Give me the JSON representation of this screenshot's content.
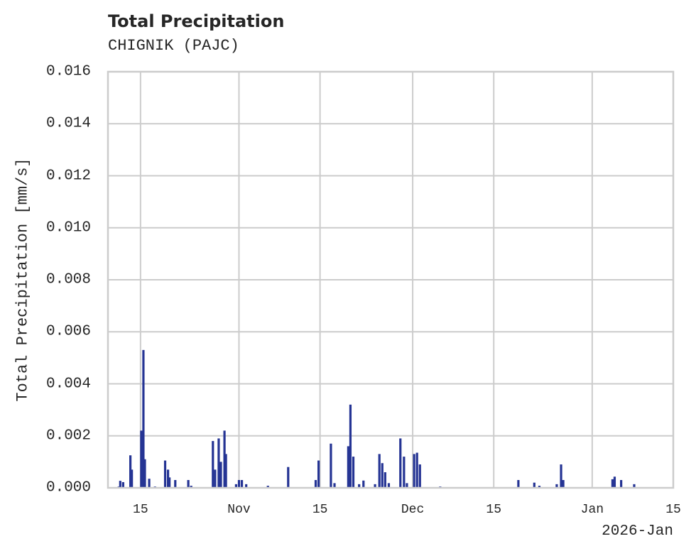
{
  "chart": {
    "title": "Total Precipitation",
    "subtitle": "CHIGNIK (PAJC)",
    "ylabel": "Total Precipitation [mm/s]",
    "x_offset_label": "2026-Jan",
    "bar_color": "#253494",
    "grid_color": "#cccccc",
    "yticks": [
      "0.000",
      "0.002",
      "0.004",
      "0.006",
      "0.008",
      "0.010",
      "0.012",
      "0.014",
      "0.016"
    ],
    "xticks": [
      "15",
      "Nov",
      "15",
      "Dec",
      "15",
      "Jan",
      "15"
    ]
  },
  "chart_data": {
    "type": "bar",
    "title": "Total Precipitation",
    "subtitle": "CHIGNIK (PAJC)",
    "xlabel": "",
    "ylabel": "Total Precipitation [mm/s]",
    "ylim": [
      0.0,
      0.016
    ],
    "xlim": [
      "2025-10-09",
      "2026-01-15"
    ],
    "x_tick_labels": [
      "15",
      "Nov",
      "15",
      "Dec",
      "15",
      "Jan",
      "15"
    ],
    "x_offset_label": "2026-Jan",
    "grid": true,
    "legend": null,
    "series": [
      {
        "name": "Total Precipitation",
        "x": [
          "2025-10-11 06:00",
          "2025-10-11 12:00",
          "2025-10-12 00:00",
          "2025-10-13 06:00",
          "2025-10-13 12:00",
          "2025-10-15 03:00",
          "2025-10-15 12:00",
          "2025-10-15 18:00",
          "2025-10-16 12:00",
          "2025-10-17 12:00",
          "2025-10-19 06:00",
          "2025-10-19 18:00",
          "2025-10-20 00:00",
          "2025-10-21 00:00",
          "2025-10-23 06:00",
          "2025-10-23 18:00",
          "2025-10-27 12:00",
          "2025-10-27 21:00",
          "2025-10-28 12:00",
          "2025-10-28 21:00",
          "2025-10-29 12:00",
          "2025-10-29 18:00",
          "2025-10-31 12:00",
          "2025-11-01 00:00",
          "2025-11-01 12:00",
          "2025-11-02 06:00",
          "2025-11-06 00:00",
          "2025-11-09 12:00",
          "2025-11-14 06:00",
          "2025-11-14 18:00",
          "2025-11-16 21:00",
          "2025-11-17 12:00",
          "2025-11-19 21:00",
          "2025-11-20 06:00",
          "2025-11-20 18:00",
          "2025-11-21 18:00",
          "2025-11-22 12:00",
          "2025-11-24 12:00",
          "2025-11-25 06:00",
          "2025-11-25 18:00",
          "2025-11-26 06:00",
          "2025-11-26 21:00",
          "2025-11-28 21:00",
          "2025-11-29 12:00",
          "2025-11-30 00:00",
          "2025-12-01 06:00",
          "2025-12-01 18:00",
          "2025-12-02 06:00",
          "2025-12-05 18:00",
          "2025-12-19 06:00",
          "2025-12-22 00:00",
          "2025-12-22 21:00",
          "2025-12-25 21:00",
          "2025-12-26 15:00",
          "2025-12-27 00:00",
          "2026-01-04 12:00",
          "2026-01-04 21:00",
          "2026-01-06 00:00",
          "2026-01-08 06:00"
        ],
        "values": [
          5e-05,
          0.00027,
          0.00022,
          0.00125,
          0.0007,
          0.0022,
          0.0053,
          0.0011,
          0.00035,
          5e-05,
          0.00105,
          0.0007,
          0.0004,
          0.0003,
          0.0003,
          8e-05,
          0.0018,
          0.0007,
          0.0019,
          0.001,
          0.0022,
          0.0013,
          0.00014,
          0.0003,
          0.0003,
          0.00014,
          8e-05,
          0.0008,
          0.0003,
          0.00105,
          0.0017,
          0.00018,
          0.0016,
          0.0032,
          0.0012,
          0.00014,
          0.00028,
          0.00014,
          0.0013,
          0.00095,
          0.0006,
          0.00018,
          0.0019,
          0.0012,
          0.00018,
          0.0013,
          0.00135,
          0.0009,
          5e-05,
          0.0003,
          0.0002,
          8e-05,
          0.00014,
          0.0009,
          0.0003,
          0.00033,
          0.00043,
          0.0003,
          0.00014
        ]
      }
    ]
  }
}
